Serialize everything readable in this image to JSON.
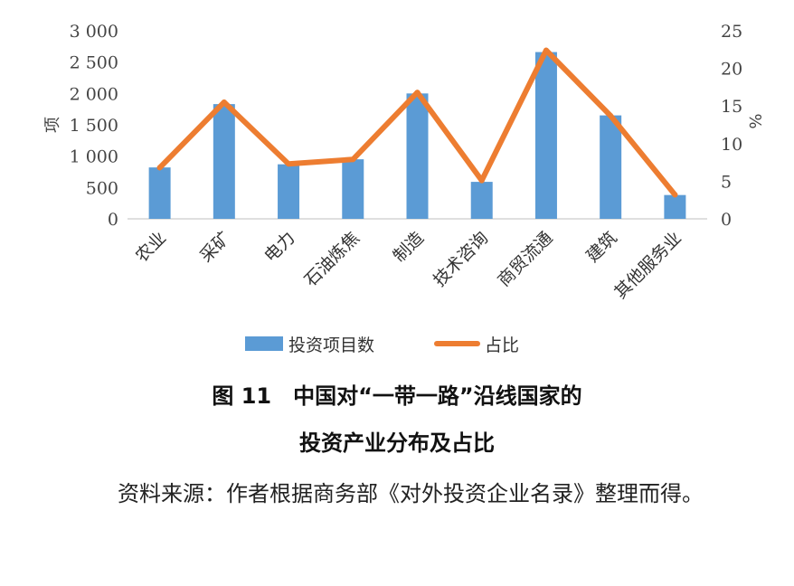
{
  "chart_data": {
    "type": "bar",
    "categories": [
      "农业",
      "采矿",
      "电力",
      "石油炼焦",
      "制造",
      "技术咨询",
      "商贸流通",
      "建筑",
      "其他服务业"
    ],
    "series": [
      {
        "name": "投资项目数",
        "type": "bar",
        "axis": "left",
        "color": "#5b9bd5",
        "values": [
          820,
          1830,
          870,
          950,
          2000,
          590,
          2660,
          1650,
          380
        ]
      },
      {
        "name": "占比",
        "type": "line",
        "axis": "right",
        "color": "#ed7d31",
        "values": [
          6.8,
          15.5,
          7.3,
          7.9,
          16.8,
          5.1,
          22.4,
          13.7,
          3.2
        ]
      }
    ],
    "y_left": {
      "label": "项",
      "ylim": [
        0,
        3000
      ],
      "ticks": [
        0,
        500,
        1000,
        1500,
        2000,
        2500,
        3000
      ],
      "tick_labels": [
        "0",
        "500",
        "1 000",
        "1 500",
        "2 000",
        "2 500",
        "3 000"
      ]
    },
    "y_right": {
      "label": "%",
      "ylim": [
        0,
        25
      ],
      "ticks": [
        0,
        5,
        10,
        15,
        20,
        25
      ],
      "tick_labels": [
        "0",
        "5",
        "10",
        "15",
        "20",
        "25"
      ]
    },
    "grid": false,
    "legend": "bottom"
  },
  "caption": {
    "line1": "图 11　中国对“一带一路”沿线国家的",
    "line2": "投资产业分布及占比"
  },
  "source_note": "资料来源：作者根据商务部《对外投资企业名录》整理而得。"
}
